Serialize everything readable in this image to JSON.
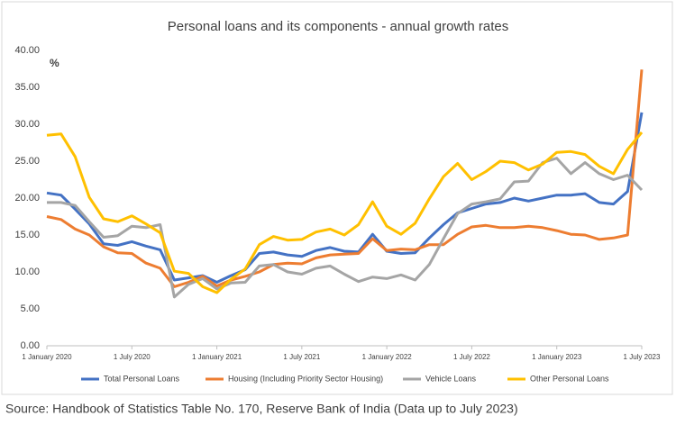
{
  "chart_data": {
    "type": "line",
    "title": "Personal loans and its components - annual growth rates",
    "ylabel": "%",
    "source": "Source: Handbook of Statistics Table No. 170, Reserve Bank of India (Data up to July 2023)",
    "categories": [
      "1 January 2020",
      null,
      null,
      null,
      null,
      null,
      "1 July 2020",
      null,
      null,
      null,
      null,
      null,
      "1 January 2021",
      null,
      null,
      null,
      null,
      null,
      "1 July 2021",
      null,
      null,
      null,
      null,
      null,
      "1 January 2022",
      null,
      null,
      null,
      null,
      null,
      "1 July 2022",
      null,
      null,
      null,
      null,
      null,
      "1 January 2023",
      null,
      null,
      null,
      null,
      null,
      "1 July 2023"
    ],
    "series": [
      {
        "name": "Total Personal Loans",
        "color": "#4472c4",
        "values": [
          20.7,
          20.4,
          18.5,
          16.5,
          13.8,
          13.6,
          14.1,
          13.5,
          13.0,
          8.9,
          9.2,
          9.5,
          8.6,
          9.5,
          10.3,
          12.5,
          12.7,
          12.3,
          12.1,
          12.9,
          13.3,
          12.8,
          12.7,
          15.1,
          12.8,
          12.5,
          12.6,
          14.6,
          16.4,
          18.0,
          18.6,
          19.2,
          19.4,
          20.0,
          19.6,
          20.0,
          20.4,
          20.4,
          20.6,
          19.4,
          19.2,
          20.9,
          31.6
        ]
      },
      {
        "name": "Housing (Including Priority Sector Housing)",
        "color": "#ed7d31",
        "values": [
          17.5,
          17.1,
          15.8,
          15.0,
          13.4,
          12.6,
          12.5,
          11.2,
          10.5,
          8.0,
          8.6,
          9.4,
          8.1,
          8.9,
          9.4,
          10.0,
          11.0,
          11.2,
          11.1,
          11.9,
          12.3,
          12.4,
          12.5,
          14.5,
          12.9,
          13.1,
          13.0,
          13.7,
          13.7,
          15.1,
          16.1,
          16.3,
          16.0,
          16.0,
          16.2,
          16.0,
          15.6,
          15.1,
          15.0,
          14.4,
          14.6,
          15.0,
          37.4
        ]
      },
      {
        "name": "Vehicle Loans",
        "color": "#a5a5a5",
        "values": [
          19.4,
          19.4,
          19.0,
          16.8,
          14.7,
          14.9,
          16.2,
          16.0,
          16.4,
          6.6,
          8.3,
          9.1,
          7.7,
          8.5,
          8.6,
          10.8,
          11.0,
          10.0,
          9.7,
          10.5,
          10.8,
          9.7,
          8.7,
          9.3,
          9.1,
          9.6,
          8.9,
          11.0,
          14.5,
          17.9,
          19.2,
          19.5,
          19.9,
          22.2,
          22.3,
          24.8,
          25.4,
          23.3,
          24.8,
          23.3,
          22.5,
          23.1,
          21.1
        ]
      },
      {
        "name": "Other Personal Loans",
        "color": "#ffc000",
        "values": [
          28.5,
          28.7,
          25.6,
          20.1,
          17.2,
          16.8,
          17.6,
          16.5,
          15.3,
          10.1,
          9.8,
          8.0,
          7.2,
          9.0,
          10.4,
          13.7,
          14.8,
          14.3,
          14.4,
          15.4,
          15.8,
          15.0,
          16.4,
          19.5,
          16.2,
          15.1,
          16.6,
          19.9,
          22.9,
          24.7,
          22.5,
          23.6,
          25.0,
          24.8,
          23.8,
          24.6,
          26.2,
          26.3,
          25.9,
          24.3,
          23.3,
          26.6,
          28.9
        ]
      }
    ],
    "ylim": [
      0,
      40
    ],
    "yticks": [
      {
        "value": 0,
        "label": "0.00"
      },
      {
        "value": 5,
        "label": "5.00"
      },
      {
        "value": 10,
        "label": "10.00"
      },
      {
        "value": 15,
        "label": "15.00"
      },
      {
        "value": 20,
        "label": "20.00"
      },
      {
        "value": 25,
        "label": "25.00"
      },
      {
        "value": 30,
        "label": "30.00"
      },
      {
        "value": 35,
        "label": "35.00"
      },
      {
        "value": 40,
        "label": "40.00"
      }
    ],
    "grid": false,
    "legend": "bottom"
  }
}
